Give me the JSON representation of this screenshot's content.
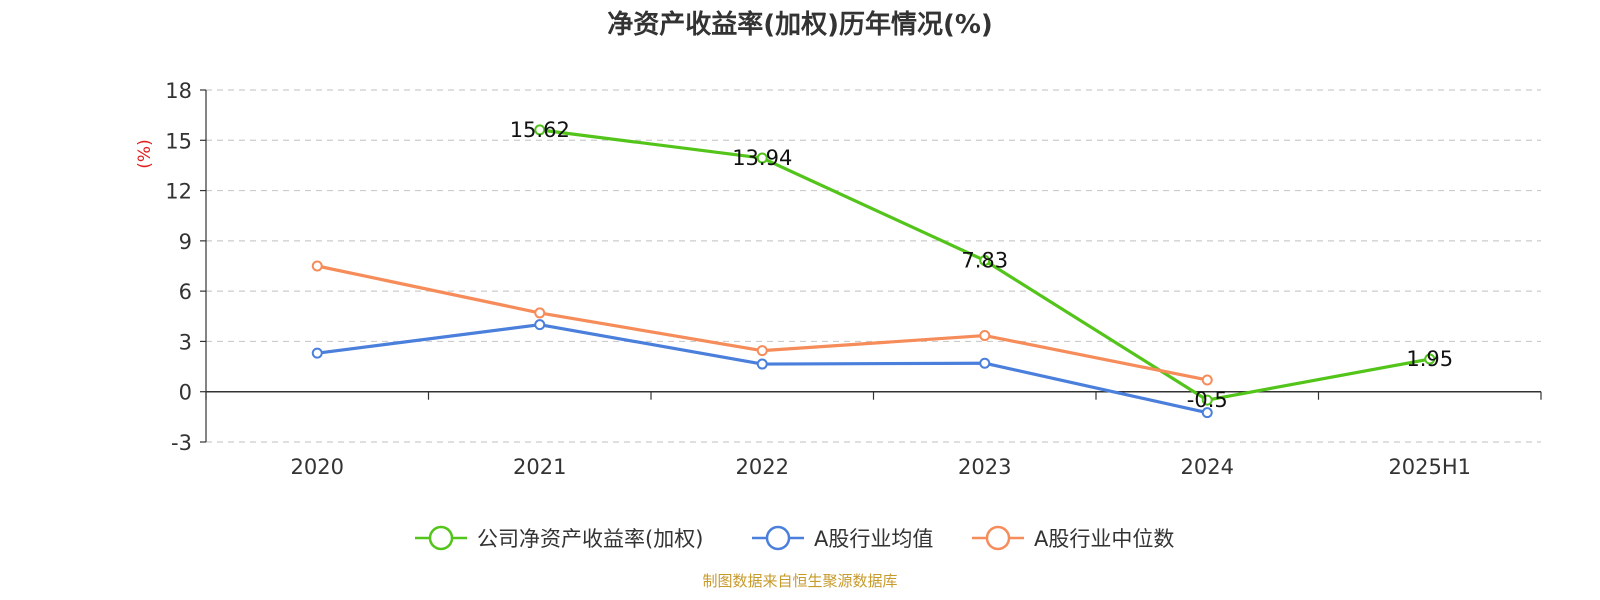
{
  "chart_data": {
    "type": "line",
    "title": "净资产收益率(加权)历年情况(%)",
    "ylabel": "(%)",
    "categories": [
      "2020",
      "2021",
      "2022",
      "2023",
      "2024",
      "2025H1"
    ],
    "ylim": [
      -3,
      18
    ],
    "yticks": [
      -3,
      0,
      3,
      6,
      9,
      12,
      15,
      18
    ],
    "grid": true,
    "legend_position": "bottom",
    "series": [
      {
        "name": "公司净资产收益率(加权)",
        "color": "#52c41a",
        "values": [
          null,
          15.62,
          13.94,
          7.83,
          -0.5,
          1.95
        ],
        "labels": [
          "",
          "15.62",
          "13.94",
          "7.83",
          "-0.5",
          "1.95"
        ]
      },
      {
        "name": "A股行业均值",
        "color": "#4a7fdc",
        "values": [
          2.3,
          4.0,
          1.65,
          1.7,
          -1.25,
          null
        ]
      },
      {
        "name": "A股行业中位数",
        "color": "#f58c5a",
        "values": [
          7.5,
          4.7,
          2.45,
          3.35,
          0.7,
          null
        ]
      }
    ]
  },
  "source_text": "制图数据来自恒生聚源数据库"
}
